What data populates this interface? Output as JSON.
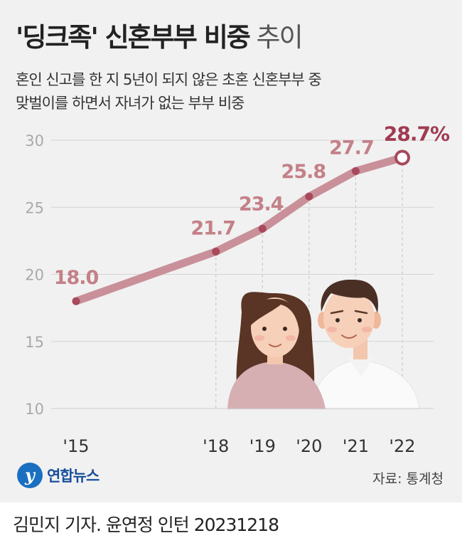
{
  "header": {
    "title_strong": "'딩크족' 신혼부부 비중",
    "title_light": "추이",
    "subtitle_line1": "혼인 신고를 한 지 5년이 되지 않은 초혼 신혼부부 중",
    "subtitle_line2": "맞벌이를 하면서 자녀가 없는 부부 비중"
  },
  "chart_data": {
    "type": "line",
    "title": "'딩크족' 신혼부부 비중 추이",
    "categories": [
      "'15",
      "'18",
      "'19",
      "'20",
      "'21",
      "'22"
    ],
    "x": [
      2015,
      2018,
      2019,
      2020,
      2021,
      2022
    ],
    "values": [
      18.0,
      21.7,
      23.4,
      25.8,
      27.7,
      28.7
    ],
    "data_labels": [
      "18.0",
      "21.7",
      "23.4",
      "25.8",
      "27.7",
      "28.7%"
    ],
    "y_ticks": [
      10,
      15,
      20,
      25,
      30
    ],
    "y_tick_labels": [
      "10",
      "15",
      "20",
      "25",
      "30"
    ],
    "ylim": [
      10,
      30
    ],
    "grid": true,
    "xlabel": "",
    "ylabel": "",
    "colors": {
      "line": "#c9909a",
      "point": "#a8495c",
      "label": "#c48088",
      "last_label": "#a03a52"
    }
  },
  "footer": {
    "logo_mark": "y",
    "logo_text": "연합뉴스",
    "source": "자료: 통계청",
    "credit": "김민지 기자. 윤연정 인턴  20231218"
  }
}
